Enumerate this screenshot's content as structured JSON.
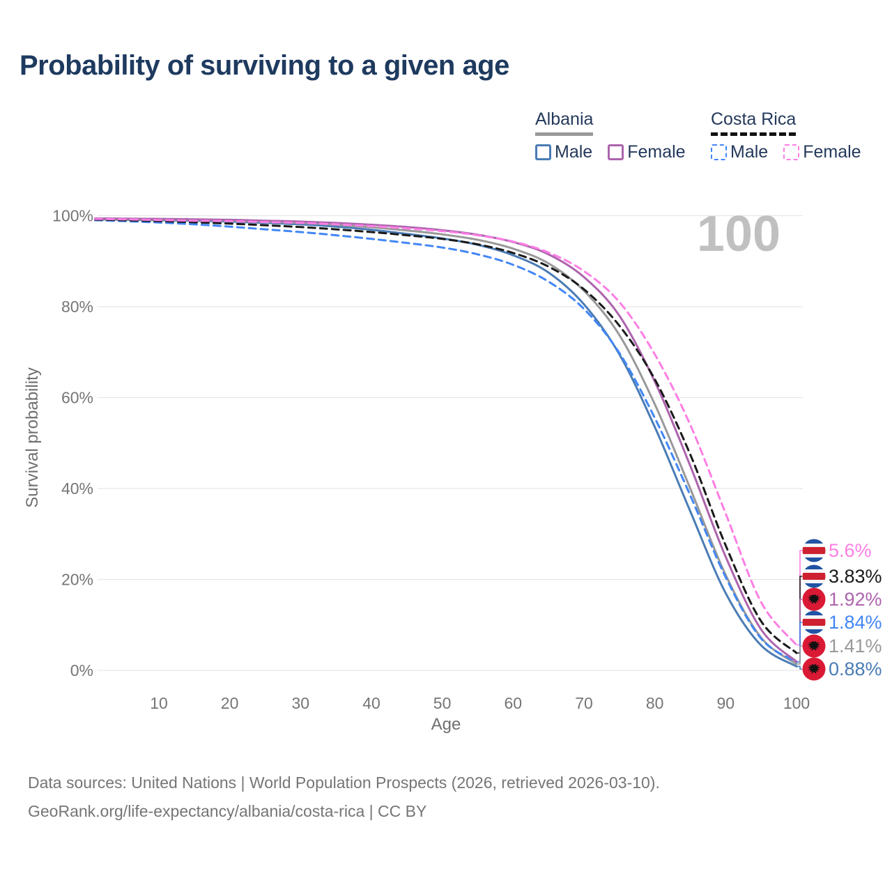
{
  "title": "Probability of surviving to a given age",
  "watermark": "100",
  "legend": {
    "groups": [
      {
        "label": "Albania",
        "line_style": "solid",
        "underline_color": "#999999",
        "items": [
          {
            "label": "Male",
            "color": "#4a7cb5"
          },
          {
            "label": "Female",
            "color": "#ad64ad"
          }
        ]
      },
      {
        "label": "Costa Rica",
        "line_style": "dashed",
        "underline_color": "#111111",
        "items": [
          {
            "label": "Male",
            "color": "#4286f5"
          },
          {
            "label": "Female",
            "color": "#fc7ee4"
          }
        ]
      }
    ]
  },
  "chart_data": {
    "type": "line",
    "title": "Probability of surviving to a given age",
    "xlabel": "Age",
    "ylabel": "Survival probability",
    "xlim": [
      0,
      100
    ],
    "ylim": [
      0,
      100
    ],
    "x_ticks": [
      10,
      20,
      30,
      40,
      50,
      60,
      70,
      80,
      90,
      100
    ],
    "y_ticks_percent": [
      0,
      20,
      40,
      60,
      80,
      100
    ],
    "grid": "horizontal",
    "legend_position": "top-right",
    "hover_age_indicator": "100",
    "ages": [
      1,
      5,
      10,
      15,
      20,
      25,
      30,
      35,
      40,
      45,
      50,
      55,
      60,
      65,
      70,
      75,
      80,
      85,
      90,
      95,
      100
    ],
    "series": [
      {
        "name": "Costa Rica Female",
        "country": "Costa Rica",
        "sex": "Female",
        "color": "#fc7ee4",
        "dashed": true,
        "flag": "costa-rica",
        "end_label": "5.6%",
        "end_value": 5.6,
        "values": [
          99.3,
          99.2,
          99.05,
          98.9,
          98.8,
          98.6,
          98.4,
          98.1,
          97.7,
          97.2,
          96.6,
          95.7,
          94.3,
          91.9,
          87.8,
          81.0,
          69.5,
          54.0,
          34.5,
          15.0,
          5.6
        ]
      },
      {
        "name": "Costa Rica Both sexes",
        "country": "Costa Rica",
        "sex": "Both",
        "color": "#1a1a1a",
        "dashed": true,
        "flag": "costa-rica",
        "end_label": "3.83%",
        "end_value": 3.83,
        "values": [
          99.15,
          99.0,
          98.8,
          98.55,
          98.25,
          97.9,
          97.5,
          97.0,
          96.4,
          95.7,
          94.9,
          93.7,
          91.8,
          88.8,
          83.8,
          75.8,
          64.0,
          47.5,
          27.5,
          10.8,
          3.83
        ]
      },
      {
        "name": "Albania Female",
        "country": "Albania",
        "sex": "Female",
        "color": "#ad64ad",
        "dashed": false,
        "flag": "albania",
        "end_label": "1.92%",
        "end_value": 1.92,
        "values": [
          99.4,
          99.35,
          99.3,
          99.2,
          99.1,
          98.9,
          98.7,
          98.4,
          98.0,
          97.5,
          96.8,
          95.8,
          94.2,
          91.5,
          86.5,
          78.0,
          63.5,
          45.0,
          25.0,
          9.0,
          1.92
        ]
      },
      {
        "name": "Costa Rica Male",
        "country": "Costa Rica",
        "sex": "Male",
        "color": "#4286f5",
        "dashed": true,
        "flag": "costa-rica",
        "end_label": "1.84%",
        "end_value": 1.84,
        "values": [
          99.0,
          98.8,
          98.5,
          98.1,
          97.6,
          97.0,
          96.4,
          95.7,
          94.9,
          94.0,
          93.0,
          91.5,
          89.2,
          85.5,
          79.5,
          69.8,
          55.5,
          38.5,
          20.5,
          7.0,
          1.84
        ]
      },
      {
        "name": "Albania Both sexes",
        "country": "Albania",
        "sex": "Both",
        "color": "#999999",
        "dashed": false,
        "flag": "albania",
        "end_label": "1.41%",
        "end_value": 1.41,
        "values": [
          99.3,
          99.2,
          99.15,
          99.05,
          98.9,
          98.65,
          98.4,
          98.0,
          97.45,
          96.75,
          95.9,
          94.7,
          92.75,
          89.5,
          83.5,
          73.75,
          58.5,
          40.0,
          21.0,
          7.2,
          1.41
        ]
      },
      {
        "name": "Albania Male",
        "country": "Albania",
        "sex": "Male",
        "color": "#4a7cb5",
        "dashed": false,
        "flag": "albania",
        "end_label": "0.88%",
        "end_value": 0.88,
        "values": [
          99.2,
          99.1,
          99.0,
          98.9,
          98.7,
          98.4,
          98.1,
          97.6,
          96.9,
          96.0,
          95.0,
          93.6,
          91.3,
          87.5,
          80.5,
          69.5,
          53.5,
          35.0,
          17.0,
          5.5,
          0.88
        ]
      }
    ]
  },
  "footer": {
    "line1": "Data sources: United Nations | World Population Prospects (2026, retrieved 2026-03-10).",
    "line2": "GeoRank.org/life-expectancy/albania/costa-rica | CC BY"
  },
  "colors": {
    "title": "#1e3a5f",
    "legend_text": "#24395b",
    "axis_text": "#757575",
    "gridline": "#e7e7e7",
    "watermark": "#c0c0c0",
    "flag_costa_rica_blue": "#2053a4",
    "flag_costa_rica_red": "#ce2030",
    "flag_albania_red": "#da1a35",
    "flag_albania_eagle": "#111111"
  }
}
